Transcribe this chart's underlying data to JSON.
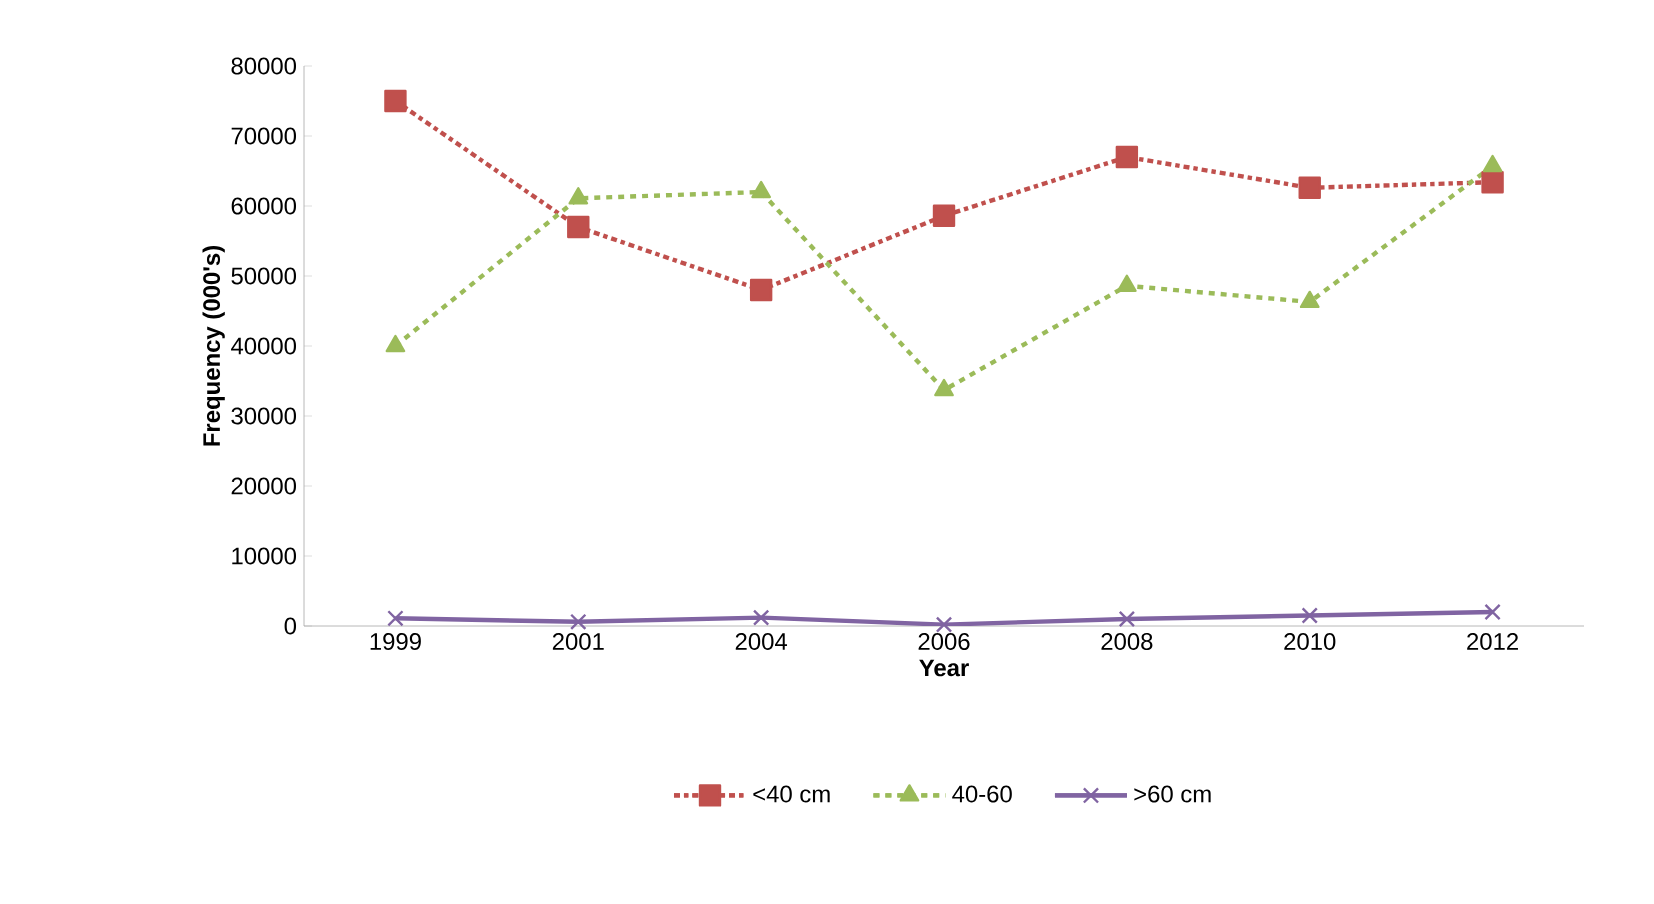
{
  "chart_data": {
    "type": "line",
    "xlabel": "Year",
    "ylabel": "Frequency (000's)",
    "categories": [
      "1999",
      "2001",
      "2004",
      "2006",
      "2008",
      "2010",
      "2012"
    ],
    "series": [
      {
        "name": "<40 cm",
        "color": "#c0504d",
        "marker": "square",
        "line_style": "dashdot",
        "values": [
          75000,
          57000,
          48000,
          58600,
          67000,
          62600,
          63400
        ]
      },
      {
        "name": "40-60",
        "color": "#9bbb59",
        "marker": "triangle",
        "line_style": "dashed",
        "values": [
          40000,
          61100,
          62000,
          33700,
          48600,
          46300,
          65700
        ]
      },
      {
        "name": ">60 cm",
        "color": "#8064a2",
        "marker": "cross",
        "line_style": "solid",
        "values": [
          1100,
          600,
          1200,
          200,
          1000,
          1500,
          2000
        ]
      }
    ],
    "ylim": [
      0,
      80000
    ],
    "yticks": [
      0,
      10000,
      20000,
      30000,
      40000,
      50000,
      60000,
      70000,
      80000
    ],
    "grid": false,
    "legend": "bottom"
  }
}
